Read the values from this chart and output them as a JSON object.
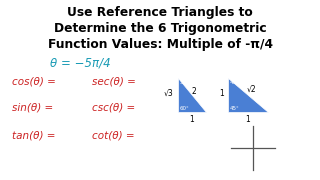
{
  "title_line1": "Use Reference Triangles to",
  "title_line2": "Determine the 6 Trigonometric",
  "title_line3": "Function Values: Multiple of -π/4",
  "theta_label": "θ = −5π/4",
  "left_col": [
    "cos(θ) =",
    "sin(θ) =",
    "tan(θ) ="
  ],
  "right_col": [
    "sec(θ) =",
    "csc(θ) =",
    "cot(θ) ="
  ],
  "title_color": "#000000",
  "theta_color": "#1a9bb5",
  "func_color": "#cc2222",
  "bg_color": "#ffffff",
  "triangle_color": "#4a7fd4",
  "cross_color": "#555555"
}
